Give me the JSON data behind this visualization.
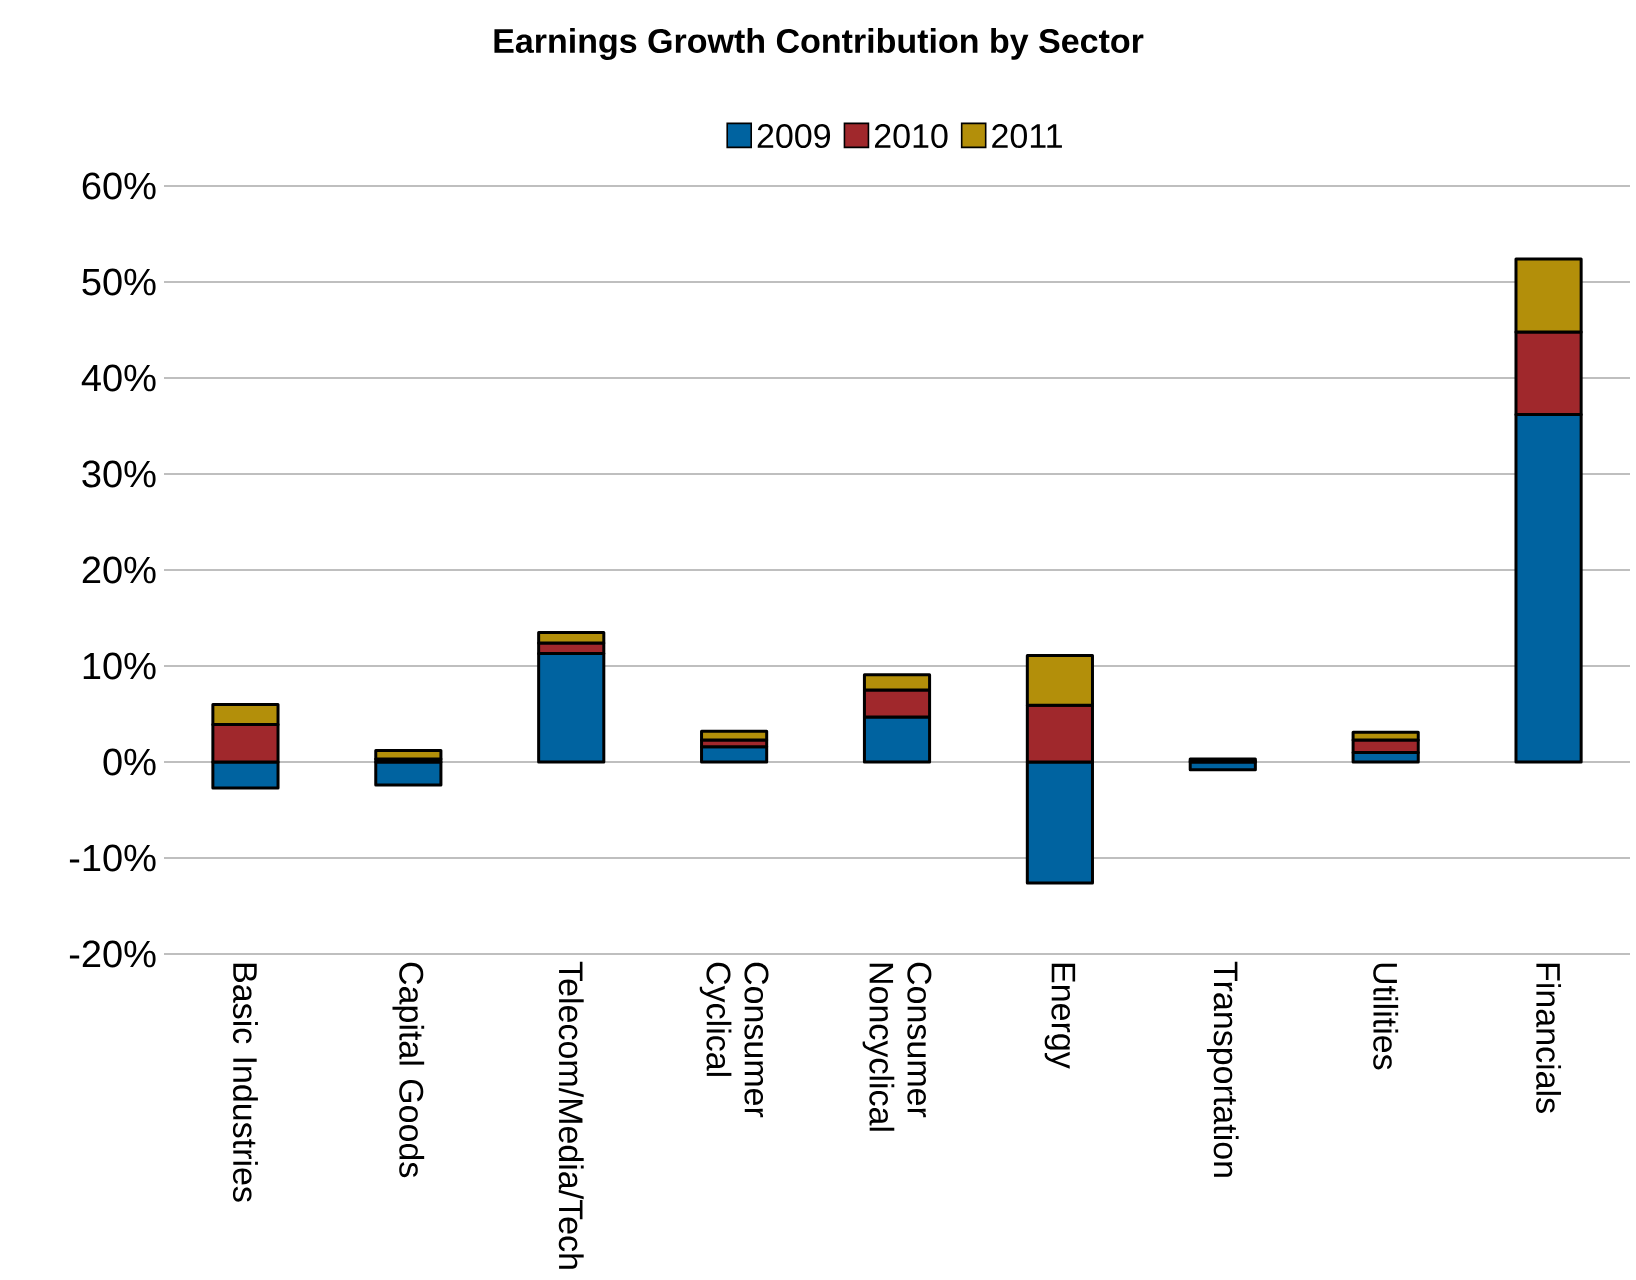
{
  "chart_data": {
    "type": "bar",
    "title": "Earnings Growth Contribution by Sector",
    "stacked": true,
    "categories": [
      "Basic Industries",
      "Capital Goods",
      "Telecom/Media/Tech",
      "Consumer Cyclical",
      "Consumer Noncyclical",
      "Energy",
      "Transportation",
      "Utilities",
      "Financials"
    ],
    "series": [
      {
        "name": "2009",
        "color": "#0063a0",
        "values": [
          -2.7,
          -2.4,
          11.3,
          1.6,
          4.7,
          -12.6,
          -0.8,
          1.0,
          36.2
        ]
      },
      {
        "name": "2010",
        "color": "#a0282c",
        "values": [
          3.9,
          0.3,
          1.1,
          0.7,
          2.8,
          5.9,
          0.1,
          1.3,
          8.6
        ]
      },
      {
        "name": "2011",
        "color": "#b38f0a",
        "values": [
          2.1,
          0.9,
          1.1,
          0.9,
          1.6,
          5.2,
          0.2,
          0.8,
          7.6
        ]
      }
    ],
    "ylim": [
      -20,
      60
    ],
    "yticks": [
      {
        "value": -20,
        "label": "-20%"
      },
      {
        "value": -10,
        "label": "-10%"
      },
      {
        "value": 0,
        "label": "0%"
      },
      {
        "value": 10,
        "label": "10%"
      },
      {
        "value": 20,
        "label": "20%"
      },
      {
        "value": 30,
        "label": "30%"
      },
      {
        "value": 40,
        "label": "40%"
      },
      {
        "value": 50,
        "label": "50%"
      },
      {
        "value": 60,
        "label": "60%"
      }
    ],
    "grid": "y",
    "legend": "top"
  }
}
